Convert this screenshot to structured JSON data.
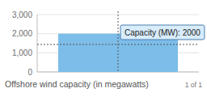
{
  "chart_data": {
    "type": "bar",
    "title": "Offshore wind capacity (in megawatts)",
    "categories": [
      null
    ],
    "values": [
      2000
    ],
    "color": "#7cbde9",
    "ylim": [
      0,
      3000
    ],
    "yticks": [
      0,
      {
        "value": 1000,
        "label": "1,000"
      },
      {
        "value": 2000,
        "label": "2,000"
      },
      {
        "value": 3000,
        "label": "3,000"
      }
    ],
    "grid": true,
    "tick_labels": "y",
    "annotations": [
      "Capacity (MW): 2000",
      "1 of 1"
    ]
  }
}
